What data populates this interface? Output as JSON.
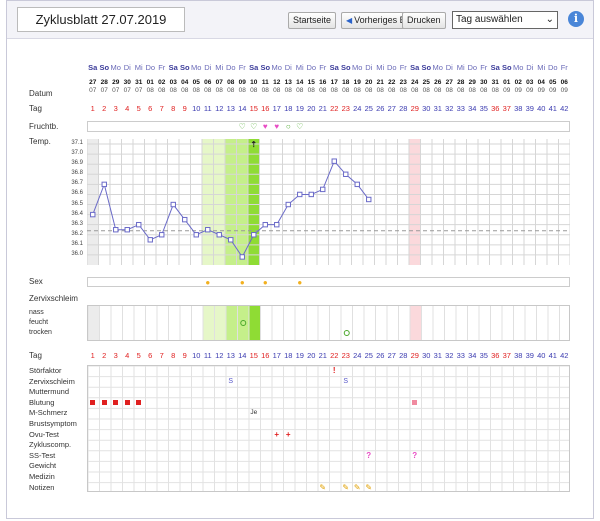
{
  "header": {
    "title": "Zyklusblatt 27.07.2019",
    "buttons": {
      "start": "Startseite",
      "prev": "Vorheriges Blatt",
      "print": "Drucken"
    },
    "select_value": "Tag auswählen",
    "info_glyph": "i"
  },
  "days": {
    "weekdays": [
      "Sa",
      "So",
      "Mo",
      "Di",
      "Mi",
      "Do",
      "Fr",
      "Sa",
      "So",
      "Mo",
      "Di",
      "Mi",
      "Do",
      "Fr",
      "Sa",
      "So",
      "Mo",
      "Di",
      "Mi",
      "Do",
      "Fr",
      "Sa",
      "So",
      "Mo",
      "Di",
      "Mi",
      "Do",
      "Fr",
      "Sa",
      "So",
      "Mo",
      "Di",
      "Mi",
      "Do",
      "Fr",
      "Sa",
      "So",
      "Mo",
      "Di",
      "Mi",
      "Do",
      "Fr"
    ],
    "day_of_month": [
      "27",
      "28",
      "29",
      "30",
      "31",
      "01",
      "02",
      "03",
      "04",
      "05",
      "06",
      "07",
      "08",
      "09",
      "10",
      "11",
      "12",
      "13",
      "14",
      "15",
      "16",
      "17",
      "18",
      "19",
      "20",
      "21",
      "22",
      "23",
      "24",
      "25",
      "26",
      "27",
      "28",
      "29",
      "30",
      "31",
      "01",
      "02",
      "03",
      "04",
      "05",
      "06"
    ],
    "month": [
      "07",
      "07",
      "07",
      "07",
      "07",
      "08",
      "08",
      "08",
      "08",
      "08",
      "08",
      "08",
      "08",
      "08",
      "08",
      "08",
      "08",
      "08",
      "08",
      "08",
      "08",
      "08",
      "08",
      "08",
      "08",
      "08",
      "08",
      "08",
      "08",
      "08",
      "08",
      "08",
      "08",
      "08",
      "08",
      "08",
      "09",
      "09",
      "09",
      "09",
      "09",
      "09"
    ],
    "cycle_day": [
      "1",
      "2",
      "3",
      "4",
      "5",
      "6",
      "7",
      "8",
      "9",
      "10",
      "11",
      "12",
      "13",
      "14",
      "15",
      "16",
      "17",
      "18",
      "19",
      "20",
      "21",
      "22",
      "23",
      "24",
      "25",
      "26",
      "27",
      "28",
      "29",
      "30",
      "31",
      "32",
      "33",
      "34",
      "35",
      "36",
      "37",
      "38",
      "39",
      "40",
      "41",
      "42"
    ],
    "red_cycle_days": [
      1,
      2,
      3,
      4,
      5,
      6,
      7,
      8,
      9,
      15,
      16,
      22,
      23,
      29,
      36,
      37
    ]
  },
  "labels": {
    "datum": "Datum",
    "tag": "Tag",
    "fruchtbarkeit": "Fruchtb.",
    "temp": "Temp.",
    "sex": "Sex",
    "zervixschleim": "Zervixschleim",
    "zs_levels": [
      "nass",
      "feucht",
      "trocken"
    ],
    "tag2": "Tag",
    "symptoms": [
      "Störfaktor",
      "Zervixschleim",
      "Muttermund",
      "Blutung",
      "M-Schmerz",
      "Brustsymptom",
      "Ovu-Test",
      "Zykluscomp.",
      "SS-Test",
      "Gewicht",
      "Medizin",
      "Notizen"
    ]
  },
  "temp_axis": [
    "37.1",
    "37.0",
    "36.9",
    "36.8",
    "36.7",
    "36.6",
    "36.5",
    "36.4",
    "36.3",
    "36.2",
    "36.1",
    "36.0"
  ],
  "chart_data": {
    "type": "line",
    "x": [
      1,
      2,
      3,
      4,
      5,
      6,
      7,
      8,
      9,
      10,
      11,
      12,
      13,
      14,
      15,
      16,
      17,
      18,
      19,
      20,
      21,
      22,
      23,
      24,
      25
    ],
    "series": [
      {
        "values": [
          36.4,
          36.7,
          36.25,
          36.25,
          36.3,
          36.15,
          36.2,
          36.5,
          36.35,
          36.2,
          36.25,
          36.2,
          36.15,
          35.98,
          36.2,
          36.3,
          36.3,
          36.5,
          36.6,
          36.6,
          36.65,
          36.93,
          36.8,
          36.7,
          36.55
        ]
      }
    ],
    "ylim": [
      35.9,
      37.15
    ],
    "coverline": 36.24
  },
  "markers": {
    "fertility": [
      {
        "day": 14,
        "sym": "♡"
      },
      {
        "day": 15,
        "sym": "♡"
      },
      {
        "day": 16,
        "sym": "♥"
      },
      {
        "day": 17,
        "sym": "♥"
      },
      {
        "day": 18,
        "sym": "○"
      },
      {
        "day": 19,
        "sym": "♡"
      }
    ],
    "ovulation_glyph": "⇡",
    "sex_days": [
      11,
      14,
      16,
      19
    ],
    "zs_circle_days": [
      {
        "day": 14,
        "level": 1
      },
      {
        "day": 23,
        "level": 2
      }
    ],
    "stoerfaktor": {
      "day": 22,
      "text": "!"
    },
    "zervix_text": [
      {
        "day": 13,
        "text": "S"
      },
      {
        "day": 23,
        "text": "S"
      }
    ],
    "bleeding_days": [
      1,
      2,
      3,
      4,
      5,
      29
    ],
    "m_schmerz": {
      "day": 15,
      "text": "Je"
    },
    "ovu_test": [
      {
        "day": 17,
        "text": "+"
      },
      {
        "day": 18,
        "text": "+"
      }
    ],
    "ss_test": [
      {
        "day": 25,
        "text": "?"
      },
      {
        "day": 29,
        "text": "?"
      }
    ],
    "notes_days": [
      21,
      23,
      24,
      25
    ]
  },
  "colors": {
    "fertile_light": "#e6f7c8",
    "fertile_mid": "#c5ef8a",
    "fertile_strong": "#8fdc34",
    "period": "#fbd9dc",
    "line": "#6a6ac8",
    "marker_pink": "#e84cc4",
    "marker_green": "#4aa82a",
    "sex": "#f2b01e",
    "bleed": "#e02020"
  }
}
